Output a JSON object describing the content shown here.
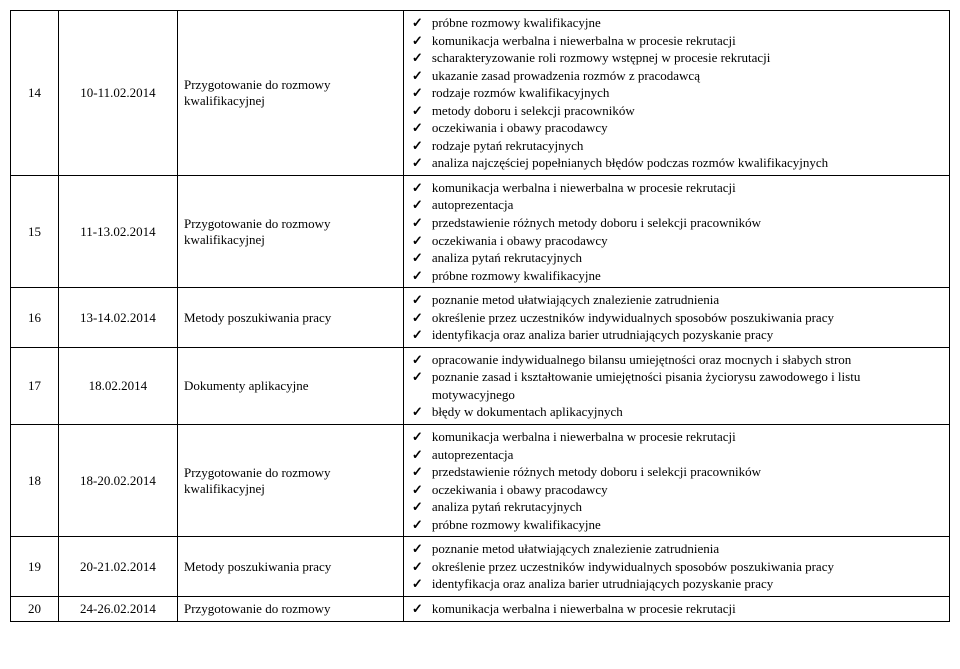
{
  "rows": [
    {
      "num": "14",
      "date": "10-11.02.2014",
      "title": "Przygotowanie do rozmowy kwalifikacyjnej",
      "items": [
        "próbne rozmowy kwalifikacyjne",
        "komunikacja werbalna i niewerbalna w procesie rekrutacji",
        "scharakteryzowanie roli rozmowy wstępnej w procesie rekrutacji",
        "ukazanie zasad prowadzenia rozmów z pracodawcą",
        "rodzaje rozmów kwalifikacyjnych",
        "metody doboru i selekcji pracowników",
        "oczekiwania i obawy pracodawcy",
        "rodzaje pytań rekrutacyjnych",
        "analiza najczęściej popełnianych błędów podczas rozmów kwalifikacyjnych"
      ]
    },
    {
      "num": "15",
      "date": "11-13.02.2014",
      "title": "Przygotowanie do rozmowy kwalifikacyjnej",
      "items": [
        "komunikacja werbalna i niewerbalna w procesie rekrutacji",
        "autoprezentacja",
        "przedstawienie różnych metody doboru i selekcji pracowników",
        "oczekiwania i obawy pracodawcy",
        "analiza pytań rekrutacyjnych",
        "próbne rozmowy kwalifikacyjne"
      ]
    },
    {
      "num": "16",
      "date": "13-14.02.2014",
      "title": "Metody poszukiwania pracy",
      "items": [
        "poznanie metod ułatwiających znalezienie   zatrudnienia",
        "określenie przez uczestników indywidualnych sposobów poszukiwania pracy",
        "identyfikacja oraz analiza barier utrudniających pozyskanie pracy"
      ]
    },
    {
      "num": "17",
      "date": "18.02.2014",
      "title": "Dokumenty aplikacyjne",
      "items": [
        "opracowanie indywidualnego bilansu umiejętności oraz mocnych i słabych stron",
        "poznanie zasad i kształtowanie umiejętności pisania życiorysu zawodowego i listu motywacyjnego",
        "błędy w dokumentach aplikacyjnych"
      ]
    },
    {
      "num": "18",
      "date": "18-20.02.2014",
      "title": "Przygotowanie do rozmowy kwalifikacyjnej",
      "items": [
        "komunikacja werbalna i niewerbalna w procesie rekrutacji",
        "autoprezentacja",
        "przedstawienie różnych metody doboru i selekcji pracowników",
        "oczekiwania i obawy pracodawcy",
        "analiza pytań rekrutacyjnych",
        "próbne rozmowy kwalifikacyjne"
      ]
    },
    {
      "num": "19",
      "date": "20-21.02.2014",
      "title": "Metody poszukiwania pracy",
      "items": [
        "poznanie metod ułatwiających znalezienie   zatrudnienia",
        "określenie przez uczestników indywidualnych sposobów poszukiwania pracy",
        "identyfikacja oraz analiza barier utrudniających pozyskanie pracy"
      ]
    },
    {
      "num": "20",
      "date": "24-26.02.2014",
      "title": "Przygotowanie do rozmowy",
      "items": [
        "komunikacja werbalna i niewerbalna w procesie rekrutacji"
      ]
    }
  ]
}
